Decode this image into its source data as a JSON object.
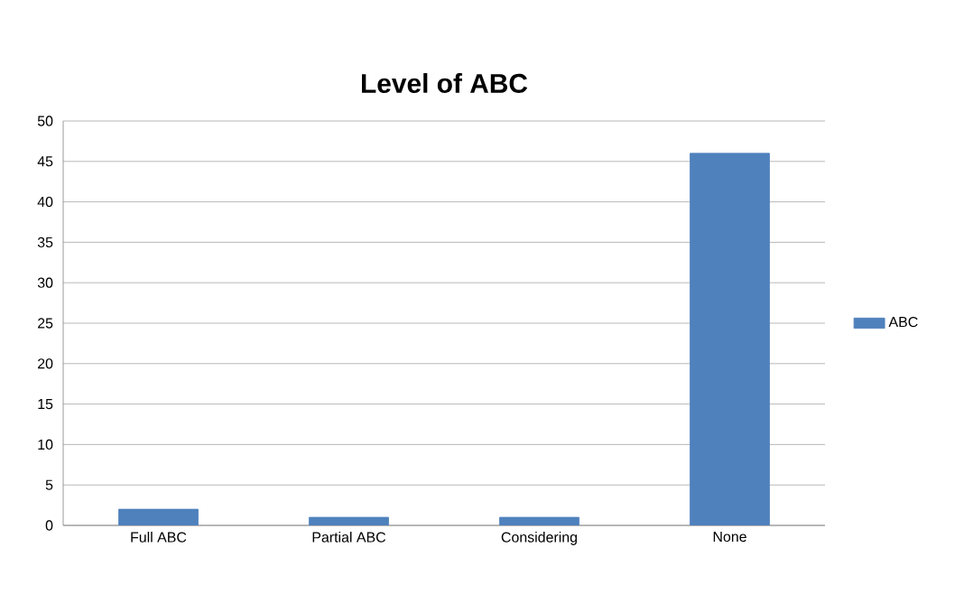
{
  "chart_data": {
    "type": "bar",
    "title": "Level of ABC",
    "categories": [
      "Full ABC",
      "Partial ABC",
      "Considering",
      "None"
    ],
    "series": [
      {
        "name": "ABC",
        "color": "#4f81bd",
        "values": [
          2,
          1,
          1,
          46
        ]
      }
    ],
    "ylim": [
      0,
      50
    ],
    "yticks": [
      0,
      5,
      10,
      15,
      20,
      25,
      30,
      35,
      40,
      45,
      50
    ],
    "grid": "y",
    "legend": "right"
  }
}
